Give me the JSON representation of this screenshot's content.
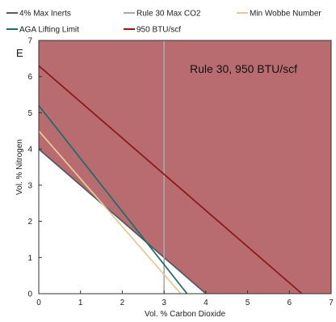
{
  "chart_data": {
    "type": "line",
    "title": "",
    "panel_label": "E",
    "annotation": "Rule 30, 950 BTU/scf",
    "xlabel": "Vol. % Carbon Dioxide",
    "ylabel": "Vol. % Nitrogen",
    "xlim": [
      0,
      7
    ],
    "ylim": [
      0,
      7
    ],
    "x_ticks": [
      "0",
      "1",
      "2",
      "3",
      "4",
      "5",
      "6",
      "7"
    ],
    "y_ticks": [
      "0",
      "1",
      "2",
      "3",
      "4",
      "5",
      "6",
      "7"
    ],
    "grid": false,
    "legend_position": "top",
    "shaded_region": {
      "color": "#b86c6f",
      "description_boundary": "950 BTU/scf"
    },
    "series": [
      {
        "name": "4% Max Inerts",
        "color": "#555a66",
        "points": [
          [
            0,
            4.0
          ],
          [
            4.0,
            0
          ]
        ]
      },
      {
        "name": "Rule 30 Max CO2",
        "color": "#a9a9a9",
        "points": [
          [
            3.0,
            0
          ],
          [
            3.0,
            7.0
          ]
        ]
      },
      {
        "name": "Min Wobbe Number",
        "color": "#e6c99a",
        "points": [
          [
            0,
            4.5
          ],
          [
            3.4,
            0
          ]
        ]
      },
      {
        "name": "AGA Lifting Limit",
        "color": "#1f6e6a",
        "points": [
          [
            0,
            5.2
          ],
          [
            3.55,
            0
          ]
        ]
      },
      {
        "name": "950 BTU/scf",
        "color": "#8b1a1a",
        "points": [
          [
            0,
            6.3
          ],
          [
            6.3,
            0
          ]
        ]
      }
    ]
  }
}
